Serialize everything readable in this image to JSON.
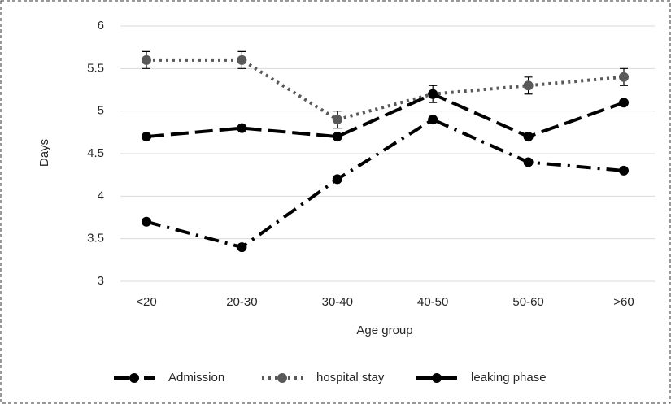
{
  "chart_data": {
    "type": "line",
    "x_label": "Age group",
    "y_label": "Days",
    "categories": [
      "<20",
      "20-30",
      "30-40",
      "40-50",
      "50-60",
      ">60"
    ],
    "series": [
      {
        "name": "Admission",
        "color": "#000000",
        "style": "dashdot",
        "values": [
          3.7,
          3.4,
          4.2,
          4.9,
          4.4,
          4.3
        ]
      },
      {
        "name": "hospital stay",
        "color": "#595959",
        "style": "dotted",
        "values": [
          5.6,
          5.6,
          4.9,
          5.2,
          5.3,
          5.4
        ],
        "errors": [
          0.1,
          0.1,
          0.1,
          0.1,
          0.1,
          0.1
        ]
      },
      {
        "name": "leaking phase",
        "color": "#000000",
        "style": "longdash",
        "values": [
          4.7,
          4.8,
          4.7,
          5.2,
          4.7,
          5.1
        ]
      }
    ],
    "ylim": [
      3,
      6
    ],
    "yticks": [
      3,
      3.5,
      4,
      4.5,
      5,
      5.5,
      6
    ],
    "grid": true,
    "legend": "bottom"
  }
}
